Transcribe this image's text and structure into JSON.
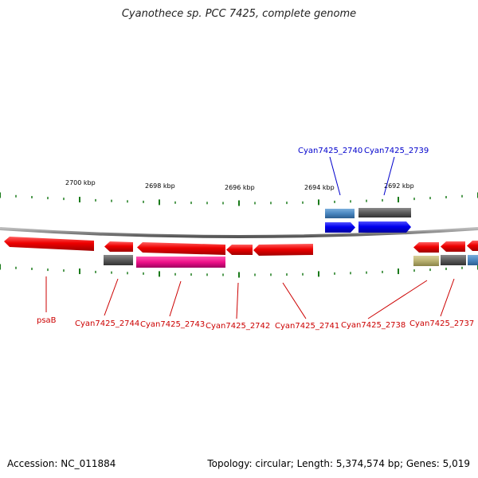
{
  "header": {
    "title": "Cyanothece sp. PCC 7425, complete genome"
  },
  "footer": {
    "accession": "Accession: NC_011884",
    "summary": "Topology: circular; Length: 5,374,574 bp; Genes: 5,019"
  },
  "scale": {
    "ticks": [
      {
        "label": "2700 kbp"
      },
      {
        "label": "2698 kbp"
      },
      {
        "label": "2696 kbp"
      },
      {
        "label": "2694 kbp"
      },
      {
        "label": "2692 kbp"
      }
    ]
  },
  "genes": {
    "forward": [
      {
        "label": "Cyan7425_2740",
        "color": "#0000ee"
      },
      {
        "label": "Cyan7425_2739",
        "color": "#0000ee"
      }
    ],
    "reverse": [
      {
        "label": "psaB",
        "color": "#ee0000"
      },
      {
        "label": "Cyan7425_2744",
        "color": "#ee0000"
      },
      {
        "label": "Cyan7425_2743",
        "color": "#ee0000"
      },
      {
        "label": "Cyan7425_2742",
        "color": "#ee0000"
      },
      {
        "label": "Cyan7425_2741",
        "color": "#ee0000"
      },
      {
        "label": "Cyan7425_2738",
        "color": "#ee0000"
      },
      {
        "label": "Cyan7425_2737",
        "color": "#ee0000"
      }
    ]
  },
  "colors": {
    "backbone": "#888888",
    "tick": "#1a7a1a",
    "forward_gene": "#0000ee",
    "reverse_gene": "#ee0000",
    "cog_steelblue": "#4a86c0",
    "cog_gray": "#5a5a5a",
    "cog_magenta": "#ee1188",
    "cog_olive": "#b8b070",
    "forward_label": "#0000cc",
    "reverse_label": "#cc0000"
  }
}
